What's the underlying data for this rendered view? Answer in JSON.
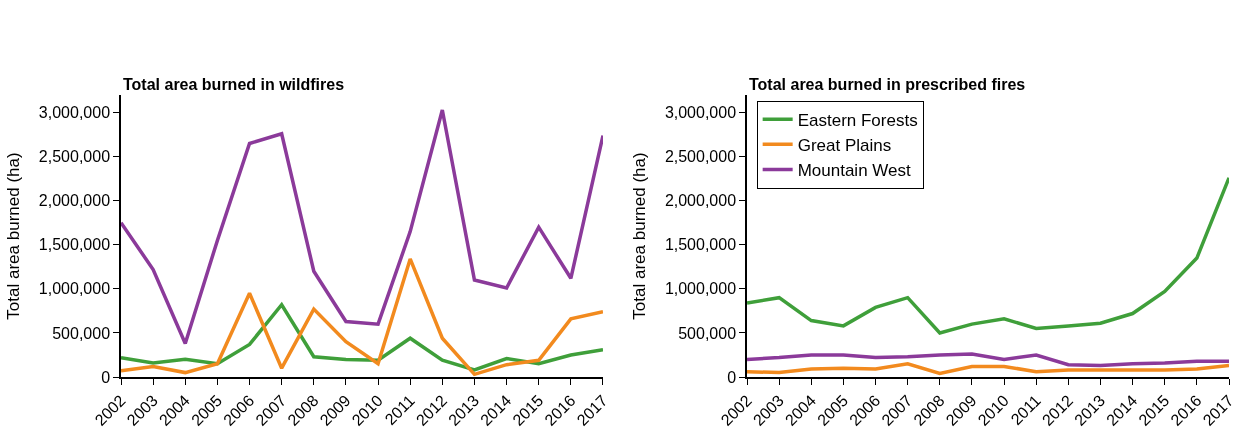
{
  "chart_data": [
    {
      "type": "line",
      "title": "Total area burned in wildfires",
      "ylabel": "Total area burned (ha)",
      "categories": [
        "2002",
        "2003",
        "2004",
        "2005",
        "2006",
        "2007",
        "2008",
        "2009",
        "2010",
        "2011",
        "2012",
        "2013",
        "2014",
        "2015",
        "2016",
        "2017"
      ],
      "ylim": [
        0,
        3200000
      ],
      "yticks": [
        {
          "value": 0,
          "label": "0"
        },
        {
          "value": 500000,
          "label": "500,000"
        },
        {
          "value": 1000000,
          "label": "1,000,000"
        },
        {
          "value": 1500000,
          "label": "1,500,000"
        },
        {
          "value": 2000000,
          "label": "2,000,000"
        },
        {
          "value": 2500000,
          "label": "2,500,000"
        },
        {
          "value": 3000000,
          "label": "3,000,000"
        }
      ],
      "marker": "none",
      "line_style": "solid",
      "series": [
        {
          "color": "#3f9f3a",
          "values": [
            220000,
            160000,
            200000,
            150000,
            370000,
            820000,
            230000,
            200000,
            190000,
            440000,
            190000,
            80000,
            210000,
            150000,
            250000,
            310000
          ]
        },
        {
          "color": "#f28a1e",
          "values": [
            70000,
            120000,
            50000,
            150000,
            950000,
            100000,
            770000,
            400000,
            150000,
            1340000,
            440000,
            30000,
            140000,
            190000,
            660000,
            740000
          ]
        },
        {
          "color": "#8b3a9a",
          "values": [
            1750000,
            1220000,
            380000,
            1550000,
            2650000,
            2760000,
            1200000,
            630000,
            600000,
            1650000,
            3030000,
            1100000,
            1010000,
            1700000,
            1120000,
            2740000
          ]
        }
      ]
    },
    {
      "type": "line",
      "title": "Total area burned in prescribed fires",
      "ylabel": "Total area burned (ha)",
      "categories": [
        "2002",
        "2003",
        "2004",
        "2005",
        "2006",
        "2007",
        "2008",
        "2009",
        "2010",
        "2011",
        "2012",
        "2013",
        "2014",
        "2015",
        "2016",
        "2017"
      ],
      "ylim": [
        0,
        3200000
      ],
      "yticks": [
        {
          "value": 0,
          "label": "0"
        },
        {
          "value": 500000,
          "label": "500,000"
        },
        {
          "value": 1000000,
          "label": "1,000,000"
        },
        {
          "value": 1500000,
          "label": "1,500,000"
        },
        {
          "value": 2000000,
          "label": "2,000,000"
        },
        {
          "value": 2500000,
          "label": "2,500,000"
        },
        {
          "value": 3000000,
          "label": "3,000,000"
        }
      ],
      "legend": "top left",
      "marker": "none",
      "line_style": "solid",
      "series": [
        {
          "name": "Eastern Forests",
          "color": "#3f9f3a",
          "values": [
            840000,
            900000,
            640000,
            580000,
            790000,
            900000,
            500000,
            600000,
            660000,
            550000,
            580000,
            610000,
            720000,
            970000,
            1350000,
            2260000
          ]
        },
        {
          "name": "Great Plains",
          "color": "#f28a1e",
          "values": [
            60000,
            50000,
            90000,
            100000,
            90000,
            150000,
            40000,
            120000,
            120000,
            60000,
            80000,
            80000,
            80000,
            80000,
            90000,
            130000
          ]
        },
        {
          "name": "Mountain West",
          "color": "#8b3a9a",
          "values": [
            200000,
            220000,
            250000,
            250000,
            220000,
            230000,
            250000,
            260000,
            200000,
            250000,
            140000,
            130000,
            150000,
            160000,
            180000,
            180000
          ]
        }
      ]
    }
  ]
}
